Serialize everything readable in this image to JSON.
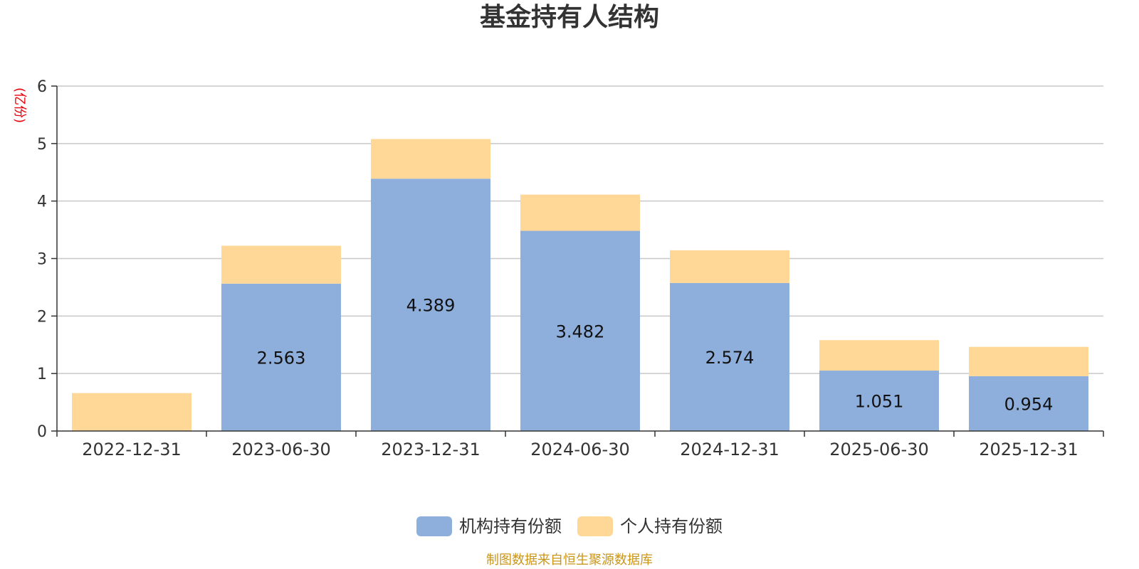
{
  "chart_data": {
    "type": "bar",
    "stacked": true,
    "title": "基金持有人结构",
    "unit": "(亿份)",
    "categories": [
      "2022-12-31",
      "2023-06-30",
      "2023-12-31",
      "2024-06-30",
      "2024-12-31",
      "2025-06-30",
      "2025-12-31"
    ],
    "series": [
      {
        "name": "机构持有份额",
        "color": "#8eaedb",
        "values": [
          0,
          2.563,
          4.389,
          3.482,
          2.574,
          1.051,
          0.954
        ],
        "labels": [
          "",
          "2.563",
          "4.389",
          "3.482",
          "2.574",
          "1.051",
          "0.954"
        ]
      },
      {
        "name": "个人持有份额",
        "color": "#ffd898",
        "values": [
          0.66,
          0.66,
          0.69,
          0.63,
          0.57,
          0.53,
          0.51
        ]
      }
    ],
    "ylim": [
      0,
      6
    ],
    "yticks": [
      "0",
      "1",
      "2",
      "3",
      "4",
      "5",
      "6"
    ],
    "grid": true,
    "legend_position": "bottom-center",
    "source": "制图数据来自恒生聚源数据库"
  }
}
